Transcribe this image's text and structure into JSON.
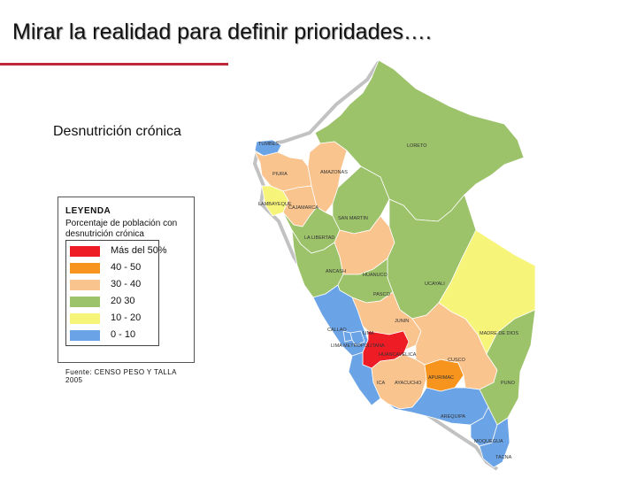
{
  "title": "Mirar la realidad para definir prioridades….",
  "subtitle": "Desnutrición crónica",
  "legend": {
    "title": "LEYENDA",
    "description": "Porcentaje de población  con desnutrición crónica",
    "items": [
      {
        "label": "Más del 50%",
        "color": "#ee1c25"
      },
      {
        "label": "40 - 50",
        "color": "#f7941d"
      },
      {
        "label": "30 - 40",
        "color": "#f9c48e"
      },
      {
        "label": "20   30",
        "color": "#9cc26a"
      },
      {
        "label": "10 - 20",
        "color": "#f7f47a"
      },
      {
        "label": "0 - 10",
        "color": "#6aa3e6"
      }
    ]
  },
  "source": "Fuente: CENSO PESO Y TALLA 2005",
  "regions": [
    {
      "name": "TUMBES",
      "category": "0 - 10"
    },
    {
      "name": "LORETO",
      "category": "20   30"
    },
    {
      "name": "AMAZONAS",
      "category": "30 - 40"
    },
    {
      "name": "PIURA",
      "category": "30 - 40"
    },
    {
      "name": "LAMBAYEQUE",
      "category": "10 - 20"
    },
    {
      "name": "CAJAMARCA",
      "category": "30 - 40"
    },
    {
      "name": "SAN MARTIN",
      "category": "20   30"
    },
    {
      "name": "LA LIBERTAD",
      "category": "20   30"
    },
    {
      "name": "ANCASH",
      "category": "20   30"
    },
    {
      "name": "HUANUCO",
      "category": "30 - 40"
    },
    {
      "name": "UCAYALI",
      "category": "20   30"
    },
    {
      "name": "PASCO",
      "category": "20   30"
    },
    {
      "name": "JUNIN",
      "category": "30 - 40"
    },
    {
      "name": "MADRE DE DIOS",
      "category": "10 - 20"
    },
    {
      "name": "CALLAO",
      "category": "0 - 10"
    },
    {
      "name": "LIMA",
      "category": "0 - 10"
    },
    {
      "name": "LIMA METROPOLITANA",
      "category": "0 - 10"
    },
    {
      "name": "HUANCAVELICA",
      "category": "Más del 50%"
    },
    {
      "name": "CUSCO",
      "category": "30 - 40"
    },
    {
      "name": "APURIMAC",
      "category": "40 - 50"
    },
    {
      "name": "ICA",
      "category": "0 - 10"
    },
    {
      "name": "AYACUCHO",
      "category": "30 - 40"
    },
    {
      "name": "PUNO",
      "category": "20   30"
    },
    {
      "name": "AREQUIPA",
      "category": "0 - 10"
    },
    {
      "name": "MOQUEGUA",
      "category": "0 - 10"
    },
    {
      "name": "TACNA",
      "category": "0 - 10"
    }
  ]
}
